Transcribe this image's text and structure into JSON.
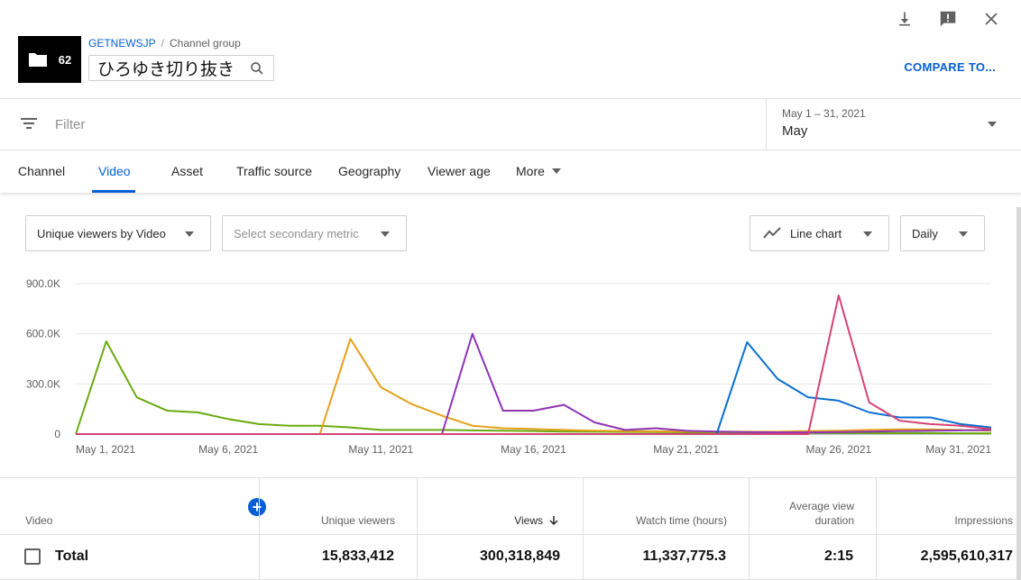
{
  "header": {
    "thumb_count": "62",
    "breadcrumb_link": "GETNEWSJP",
    "breadcrumb_sep": "/",
    "breadcrumb_current": "Channel group",
    "title": "ひろゆき切り抜き",
    "compare_label": "COMPARE TO...",
    "icons": [
      "download-icon",
      "feedback-icon",
      "close-icon"
    ]
  },
  "filter": {
    "placeholder": "Filter"
  },
  "date": {
    "range": "May 1 – 31, 2021",
    "period": "May"
  },
  "tabs": [
    {
      "label": "Channel"
    },
    {
      "label": "Video",
      "active": true
    },
    {
      "label": "Asset"
    },
    {
      "label": "Traffic source"
    },
    {
      "label": "Geography"
    },
    {
      "label": "Viewer age"
    },
    {
      "label": "More"
    }
  ],
  "controls": {
    "primary_metric": "Unique viewers by Video",
    "secondary_metric": "Select secondary metric",
    "chart_type": "Line chart",
    "granularity": "Daily"
  },
  "chart_data": {
    "type": "line",
    "x": [
      1,
      2,
      3,
      4,
      5,
      6,
      7,
      8,
      9,
      10,
      11,
      12,
      13,
      14,
      15,
      16,
      17,
      18,
      19,
      20,
      21,
      22,
      23,
      24,
      25,
      26,
      27,
      28,
      29,
      30,
      31
    ],
    "x_tick_labels": [
      "May 1, 2021",
      "May 6, 2021",
      "May 11, 2021",
      "May 16, 2021",
      "May 21, 2021",
      "May 26, 2021",
      "May 31, 2021"
    ],
    "x_tick_positions": [
      1,
      6,
      11,
      16,
      21,
      26,
      31
    ],
    "y_tick_labels": [
      "0",
      "300.0K",
      "600.0K",
      "900.0K"
    ],
    "y_tick_values": [
      0,
      300000,
      600000,
      900000
    ],
    "ylim": [
      0,
      900000
    ],
    "grid": true,
    "series": [
      {
        "color": "#6aaa0f",
        "values": [
          0,
          555000,
          220000,
          140000,
          130000,
          90000,
          60000,
          50000,
          50000,
          40000,
          25000,
          25000,
          25000,
          22000,
          20000,
          18000,
          15000,
          14000,
          13000,
          12000,
          11000,
          10000,
          9000,
          8000,
          8000,
          7000,
          7000,
          6000,
          6000,
          5000,
          5000
        ]
      },
      {
        "color": "#e6a01b",
        "values": [
          0,
          0,
          0,
          0,
          0,
          0,
          0,
          0,
          0,
          570000,
          280000,
          180000,
          110000,
          50000,
          35000,
          30000,
          25000,
          20000,
          18000,
          17000,
          16000,
          15000,
          14000,
          14000,
          18000,
          20000,
          25000,
          28000,
          28000,
          25000,
          20000
        ]
      },
      {
        "color": "#8e34b5",
        "values": [
          0,
          0,
          0,
          0,
          0,
          0,
          0,
          0,
          0,
          0,
          0,
          0,
          0,
          600000,
          140000,
          140000,
          175000,
          70000,
          25000,
          35000,
          20000,
          15000,
          12000,
          10000,
          10000,
          12000,
          15000,
          18000,
          20000,
          22000,
          25000
        ]
      },
      {
        "color": "#0a6fd1",
        "values": [
          0,
          0,
          0,
          0,
          0,
          0,
          0,
          0,
          0,
          0,
          0,
          0,
          0,
          0,
          0,
          0,
          0,
          0,
          0,
          0,
          0,
          0,
          550000,
          330000,
          220000,
          200000,
          130000,
          100000,
          100000,
          60000,
          40000
        ]
      },
      {
        "color": "#d64474",
        "values": [
          0,
          0,
          0,
          0,
          0,
          0,
          0,
          0,
          0,
          0,
          0,
          0,
          0,
          0,
          0,
          0,
          0,
          0,
          0,
          0,
          0,
          0,
          0,
          0,
          0,
          830000,
          190000,
          80000,
          60000,
          50000,
          30000
        ]
      }
    ]
  },
  "table": {
    "columns": [
      {
        "label": "Video"
      },
      {
        "label": "Unique viewers"
      },
      {
        "label": "Views"
      },
      {
        "label": "Watch time (hours)"
      },
      {
        "label_line1": "Average view",
        "label_line2": "duration"
      },
      {
        "label": "Impressions"
      }
    ],
    "total": {
      "label": "Total",
      "unique_viewers": "15,833,412",
      "views": "300,318,849",
      "watch_time": "11,337,775.3",
      "avg_duration": "2:15",
      "impressions": "2,595,610,317"
    }
  }
}
